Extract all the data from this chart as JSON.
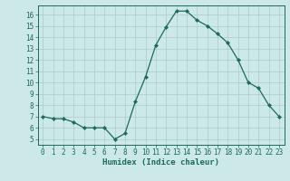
{
  "x": [
    0,
    1,
    2,
    3,
    4,
    5,
    6,
    7,
    8,
    9,
    10,
    11,
    12,
    13,
    14,
    15,
    16,
    17,
    18,
    19,
    20,
    21,
    22,
    23
  ],
  "y": [
    7.0,
    6.8,
    6.8,
    6.5,
    6.0,
    6.0,
    6.0,
    5.0,
    5.5,
    8.3,
    10.5,
    13.3,
    14.9,
    16.3,
    16.3,
    15.5,
    15.0,
    14.3,
    13.5,
    12.0,
    10.0,
    9.5,
    8.0,
    7.0
  ],
  "line_color": "#1a6b5a",
  "marker": "D",
  "marker_size": 2.2,
  "xlabel": "Humidex (Indice chaleur)",
  "xlim": [
    -0.5,
    23.5
  ],
  "ylim": [
    4.5,
    16.8
  ],
  "yticks": [
    5,
    6,
    7,
    8,
    9,
    10,
    11,
    12,
    13,
    14,
    15,
    16
  ],
  "xticks": [
    0,
    1,
    2,
    3,
    4,
    5,
    6,
    7,
    8,
    9,
    10,
    11,
    12,
    13,
    14,
    15,
    16,
    17,
    18,
    19,
    20,
    21,
    22,
    23
  ],
  "bg_color": "#cce8e8",
  "grid_color": "#aacccc",
  "line_width": 0.9,
  "tick_fontsize": 5.5,
  "xlabel_fontsize": 6.5
}
